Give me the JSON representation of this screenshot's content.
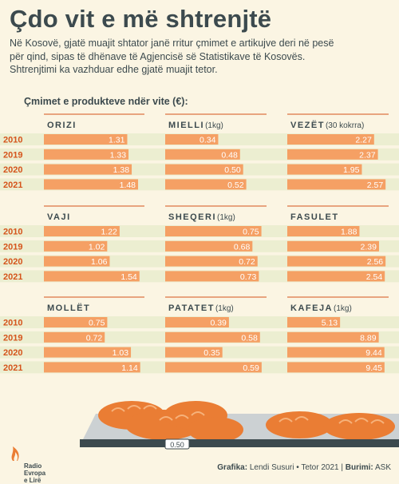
{
  "title": "Çdo vit e më shtrenjtë",
  "intro": {
    "line1": "Në Kosovë, gjatë muajit shtator janë rritur çmimet e artikujve deri në pesë",
    "line2": "për qind, sipas të dhënave të Agjencisë së Statistikave të Kosovës.",
    "line3": "Shtrenjtimi ka vazhduar edhe gjatë muajit tetor."
  },
  "subhead": "Çmimet e produkteve ndër vite (€):",
  "chart_data": {
    "type": "bar",
    "orientation": "horizontal",
    "categories": [
      "2010",
      "2019",
      "2020",
      "2021"
    ],
    "panels": [
      {
        "name": "ORIZI",
        "unit": "",
        "values": [
          1.31,
          1.33,
          1.38,
          1.48
        ],
        "labels": [
          "1.31",
          "1.33",
          "1.38",
          "1.48"
        ],
        "xmax": 1.58
      },
      {
        "name": "MIELLI",
        "unit": "(1kg)",
        "values": [
          0.34,
          0.48,
          0.5,
          0.52
        ],
        "labels": [
          "0.34",
          "0.48",
          "0.50",
          "0.52"
        ],
        "xmax": 0.65
      },
      {
        "name": "VEZËT",
        "unit": "(30 kokrra)",
        "values": [
          2.27,
          2.37,
          1.95,
          2.57
        ],
        "labels": [
          "2.27",
          "2.37",
          "1.95",
          "2.57"
        ],
        "xmax": 2.65
      },
      {
        "name": "VAJI",
        "unit": "",
        "values": [
          1.22,
          1.02,
          1.06,
          1.54
        ],
        "labels": [
          "1.22",
          "1.02",
          "1.06",
          "1.54"
        ],
        "xmax": 1.62
      },
      {
        "name": "SHEQERI",
        "unit": "(1kg)",
        "values": [
          0.75,
          0.68,
          0.72,
          0.73
        ],
        "labels": [
          "0.75",
          "0.68",
          "0.72",
          "0.73"
        ],
        "xmax": 0.79
      },
      {
        "name": "FASULET",
        "unit": "",
        "values": [
          1.88,
          2.39,
          2.56,
          2.54
        ],
        "labels": [
          "1.88",
          "2.39",
          "2.56",
          "2.54"
        ],
        "xmax": 2.64
      },
      {
        "name": "MOLLËT",
        "unit": "",
        "values": [
          0.75,
          0.72,
          1.03,
          1.14
        ],
        "labels": [
          "0.75",
          "0.72",
          "1.03",
          "1.14"
        ],
        "xmax": 1.19
      },
      {
        "name": "PATATET",
        "unit": "(1kg)",
        "values": [
          0.39,
          0.58,
          0.35,
          0.59
        ],
        "labels": [
          "0.39",
          "0.58",
          "0.35",
          "0.59"
        ],
        "xmax": 0.62
      },
      {
        "name": "KAFEJA",
        "unit": "(1kg)",
        "values": [
          5.13,
          8.89,
          9.44,
          9.45
        ],
        "labels": [
          "5.13",
          "8.89",
          "9.44",
          "9.45"
        ],
        "xmax": 9.85
      }
    ]
  },
  "colors": {
    "bar": "#f5a064",
    "stripe": "#eceed1",
    "year": "#d5541b",
    "divider": "#d5541b",
    "text": "#3c4a4e"
  },
  "price_tag": "0.50",
  "logo": {
    "line1": "Radio Evropa",
    "line2": "e Lirë",
    "icon": "rferl-flame-icon"
  },
  "credit": {
    "label1": "Grafika:",
    "value1": "Lendi Susuri • Tetor 2021",
    "separator": " | ",
    "label2": "Burimi:",
    "value2": "ASK"
  }
}
